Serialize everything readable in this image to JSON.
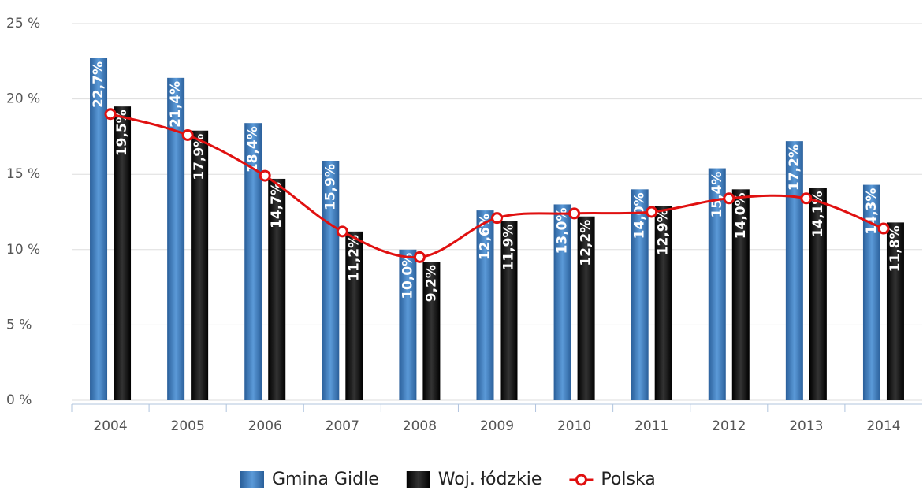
{
  "chart_data": {
    "type": "bar_line",
    "categories": [
      "2004",
      "2005",
      "2006",
      "2007",
      "2008",
      "2009",
      "2010",
      "2011",
      "2012",
      "2013",
      "2014"
    ],
    "series": [
      {
        "name": "Gmina Gidle",
        "color": "#3d7cc0",
        "type": "bar",
        "values": [
          22.7,
          21.4,
          18.4,
          15.9,
          10.0,
          12.6,
          13.0,
          14.0,
          15.4,
          17.2,
          14.3
        ],
        "value_labels": [
          "22,7%",
          "21,4%",
          "18,4%",
          "15,9%",
          "10,0%",
          "12,6%",
          "13,0%",
          "14,0%",
          "15,4%",
          "17,2%",
          "14,3%"
        ]
      },
      {
        "name": "Woj. łódzkie",
        "color": "#1a1a1a",
        "type": "bar",
        "values": [
          19.5,
          17.9,
          14.7,
          11.2,
          9.2,
          11.9,
          12.2,
          12.9,
          14.0,
          14.1,
          11.8
        ],
        "value_labels": [
          "19,5%",
          "17,9%",
          "14,7%",
          "11,2%",
          "9,2%",
          "11,9%",
          "12,2%",
          "12,9%",
          "14,0%",
          "14,1%",
          "11,8%"
        ]
      },
      {
        "name": "Polska",
        "color": "#e01010",
        "type": "line",
        "values": [
          19.0,
          17.6,
          14.9,
          11.2,
          9.5,
          12.1,
          12.4,
          12.5,
          13.4,
          13.4,
          11.4
        ]
      }
    ],
    "ylim": [
      0,
      25
    ],
    "yticks": [
      {
        "value": 0,
        "label": "0 %"
      },
      {
        "value": 5,
        "label": "5 %"
      },
      {
        "value": 10,
        "label": "10 %"
      },
      {
        "value": 15,
        "label": "15 %"
      },
      {
        "value": 20,
        "label": "20 %"
      },
      {
        "value": 25,
        "label": "25 %"
      }
    ],
    "grid": true,
    "legend": "bottom"
  }
}
